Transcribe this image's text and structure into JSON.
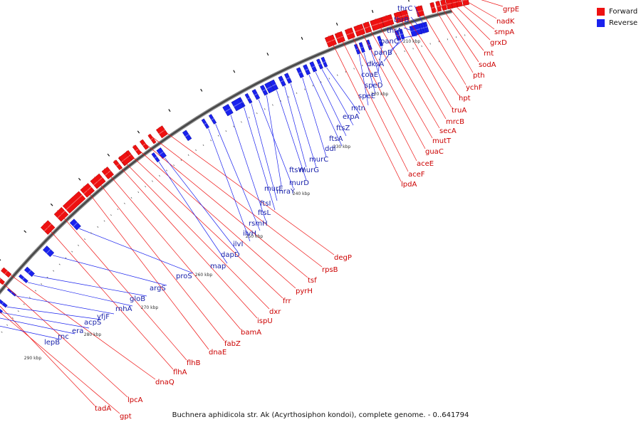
{
  "legend": {
    "forward_label": "Forward",
    "reverse_label": "Reverse",
    "forward_color": "#ee1111",
    "reverse_color": "#1a22ee"
  },
  "caption": "Buchnera aphidicola str. Ak (Acyrthosiphon kondoi), complete genome. - 0..641794",
  "ticks": [
    "210 kbp",
    "220 kbp",
    "230 kbp",
    "240 kbp",
    "250 kbp",
    "260 kbp",
    "270 kbp",
    "280 kbp",
    "290 kbp"
  ],
  "forward_genes": [
    "grpE",
    "nadK",
    "smpA",
    "grxD",
    "rnt",
    "sodA",
    "pth",
    "ychF",
    "hpt",
    "truA",
    "mrcB",
    "secA",
    "mutT",
    "guaC",
    "aceE",
    "aceF",
    "lpdA",
    "degP",
    "rpsB",
    "tsf",
    "pyrH",
    "frr",
    "dxr",
    "ispU",
    "bamA",
    "fabZ",
    "dnaE",
    "flhB",
    "flhA",
    "dnaQ",
    "lpcA",
    "tadA",
    "gpt"
  ],
  "reverse_genes": [
    "thrC",
    "thrB",
    "thrA",
    "panC",
    "panB",
    "dksA",
    "coaE",
    "speD",
    "speE",
    "mtn",
    "erpA",
    "ftsZ",
    "ftsA",
    "ddl",
    "murC",
    "murG",
    "ftsW",
    "murD",
    "murE",
    "mraY",
    "ftsI",
    "ftsL",
    "rsmH",
    "ilvH",
    "ilvI",
    "dapD",
    "map",
    "proS",
    "argS",
    "gloB",
    "rnhA",
    "yfjF",
    "acpS",
    "era",
    "rnc",
    "lepB"
  ]
}
